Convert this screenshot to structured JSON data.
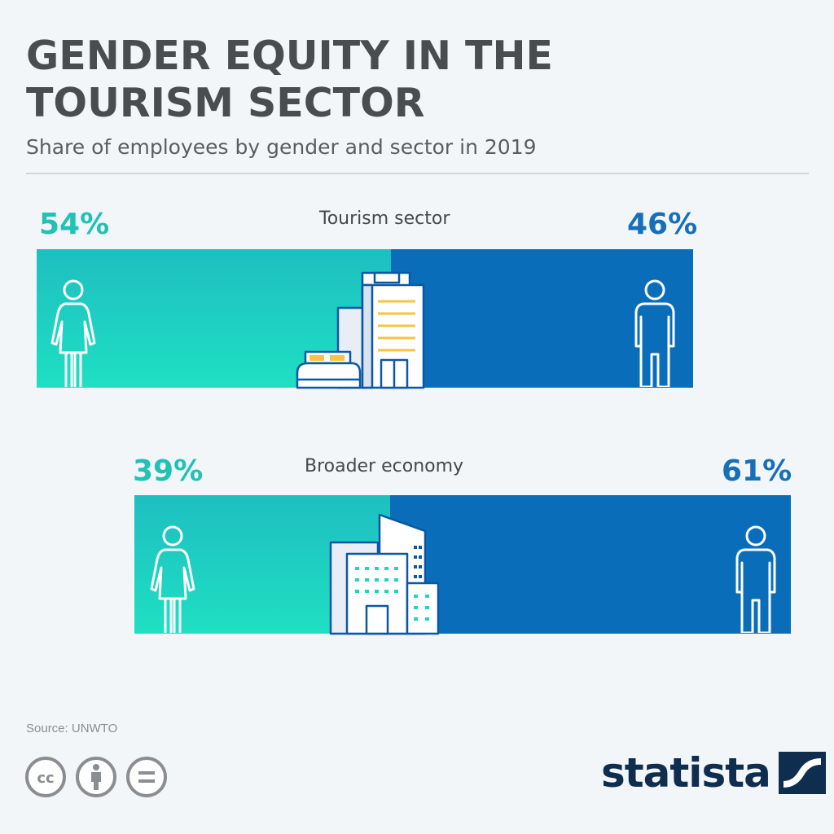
{
  "title": "GENDER EQUITY IN THE TOURISM SECTOR",
  "subtitle": "Share of employees by gender and sector in 2019",
  "source": "Source: UNWTO",
  "brand": "statista",
  "colors": {
    "women": "#1fc9c0",
    "men": "#0a6dba",
    "title": "#4a4d4f",
    "background": "#f2f6f9"
  },
  "icons": [
    "woman-icon",
    "man-icon",
    "hotel-building-icon",
    "office-buildings-icon",
    "cc-icon",
    "attribution-icon",
    "no-derivatives-icon",
    "statista-logo-icon"
  ],
  "chart_data": {
    "type": "bar",
    "stacked": true,
    "orientation": "horizontal",
    "categories": [
      "Tourism sector",
      "Broader economy"
    ],
    "series": [
      {
        "values": [
          54,
          39
        ],
        "labels": [
          "54%",
          "39%"
        ]
      },
      {
        "values": [
          46,
          61
        ],
        "labels": [
          "46%",
          "61%"
        ]
      }
    ]
  }
}
